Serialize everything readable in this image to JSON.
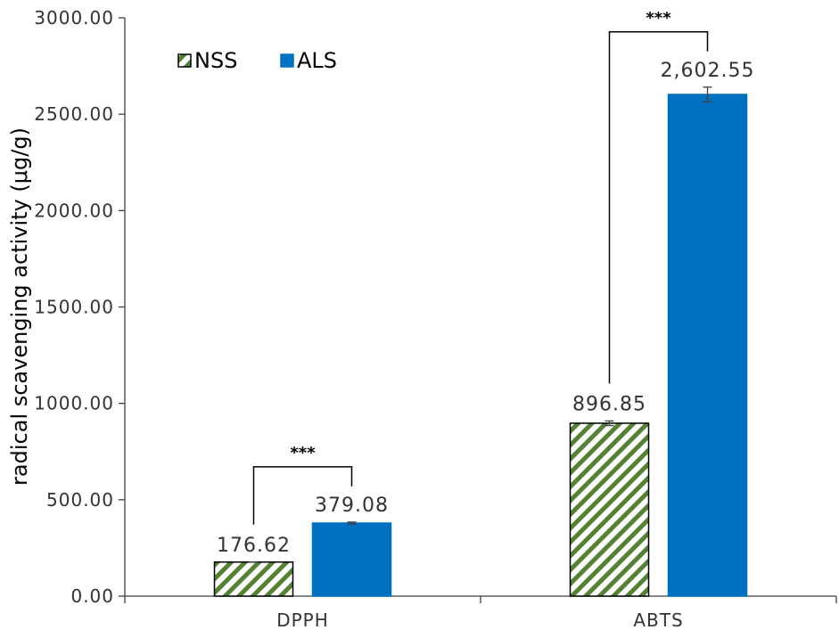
{
  "chart_data": {
    "type": "bar",
    "categories": [
      "DPPH",
      "ABTS"
    ],
    "series": [
      {
        "name": "NSS",
        "values": [
          176.62,
          896.85
        ],
        "errors": [
          0,
          12
        ],
        "pattern": "diagonal-hatch",
        "color": "#548235",
        "data_labels": [
          "176.62",
          "896.85"
        ]
      },
      {
        "name": "ALS",
        "values": [
          379.08,
          2602.55
        ],
        "errors": [
          5,
          38
        ],
        "pattern": "solid",
        "color": "#0070C0",
        "data_labels": [
          "379.08",
          "2,602.55"
        ]
      }
    ],
    "ylabel": "radical scavenging activity (μg/g)",
    "xlabel": "",
    "ylim": [
      0,
      3000
    ],
    "yticks": [
      0,
      500,
      1000,
      1500,
      2000,
      2500,
      3000
    ],
    "ytick_labels": [
      "0.00",
      "500.00",
      "1000.00",
      "1500.00",
      "2000.00",
      "2500.00",
      "3000.00"
    ],
    "legend_position": "top-left",
    "grid": false,
    "significance": [
      {
        "category": "DPPH",
        "label": "***"
      },
      {
        "category": "ABTS",
        "label": "***"
      }
    ]
  }
}
